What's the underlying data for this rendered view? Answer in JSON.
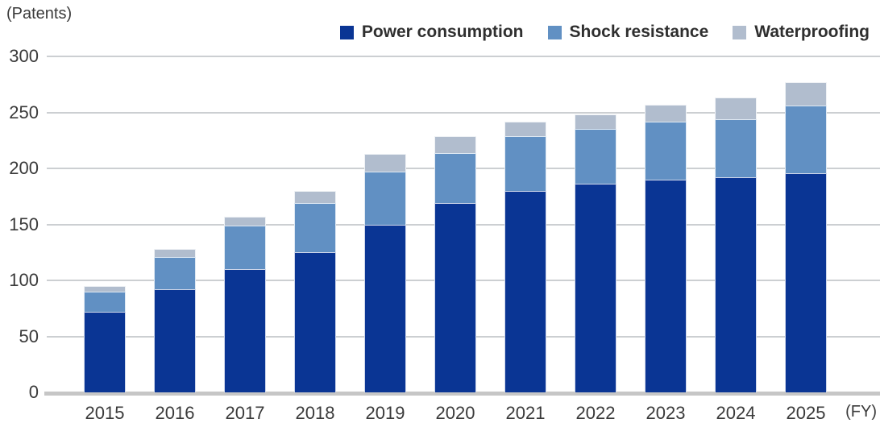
{
  "header": {
    "units_label": "(Patents)",
    "fy_label": "(FY)"
  },
  "chart_data": {
    "type": "bar",
    "stacked": true,
    "title": "",
    "ylabel": "(Patents)",
    "xlabel": "(FY)",
    "ylim": [
      0,
      300
    ],
    "yticks": [
      0,
      50,
      100,
      150,
      200,
      250,
      300
    ],
    "grid": true,
    "legend_position": "top-right",
    "categories": [
      "2015",
      "2016",
      "2017",
      "2018",
      "2019",
      "2020",
      "2021",
      "2022",
      "2023",
      "2024",
      "2025"
    ],
    "series": [
      {
        "name": "Power consumption",
        "color": "#0a3594",
        "values": [
          72,
          92,
          110,
          125,
          150,
          169,
          180,
          186,
          190,
          192,
          196
        ]
      },
      {
        "name": "Shock resistance",
        "color": "#6190c3",
        "values": [
          18,
          29,
          39,
          44,
          47,
          45,
          49,
          49,
          52,
          52,
          60
        ]
      },
      {
        "name": "Waterproofing",
        "color": "#b1bdce",
        "values": [
          5,
          7,
          8,
          11,
          16,
          15,
          13,
          13,
          15,
          19,
          21
        ]
      }
    ],
    "totals": [
      95,
      128,
      157,
      180,
      213,
      229,
      242,
      248,
      257,
      263,
      277
    ]
  }
}
